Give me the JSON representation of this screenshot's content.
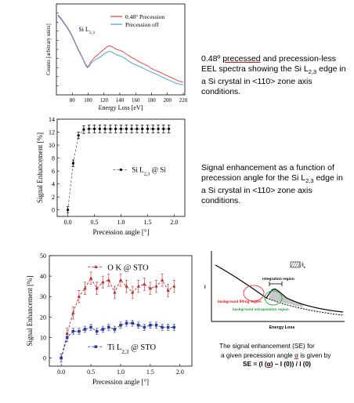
{
  "chart_data": [
    {
      "type": "line",
      "xlabel": "Energy Loss [eV]",
      "ylabel": "Counts [arbitrary units]",
      "xlim": [
        60,
        222
      ],
      "ylim": [
        0,
        1
      ],
      "xticks": [
        "80",
        "100",
        "120",
        "140",
        "160",
        "180",
        "200",
        "220"
      ],
      "annotation": "Si L",
      "annotation_sub": "2,3",
      "legend_position": "top-right",
      "series": [
        {
          "name": "0.48° Precession",
          "color": "#e8474a",
          "x": [
            62,
            66,
            70,
            74,
            78,
            82,
            86,
            90,
            94,
            97,
            99,
            101,
            104,
            108,
            112,
            116,
            120,
            124,
            128,
            132,
            136,
            140,
            145,
            150,
            155,
            160,
            165,
            170,
            175,
            180,
            185,
            190,
            195,
            200,
            205,
            210,
            215,
            220
          ],
          "y": [
            0.88,
            0.84,
            0.79,
            0.74,
            0.68,
            0.61,
            0.53,
            0.46,
            0.39,
            0.33,
            0.31,
            0.32,
            0.37,
            0.41,
            0.44,
            0.47,
            0.5,
            0.53,
            0.54,
            0.52,
            0.5,
            0.49,
            0.47,
            0.44,
            0.41,
            0.39,
            0.36,
            0.34,
            0.32,
            0.29,
            0.27,
            0.25,
            0.23,
            0.21,
            0.19,
            0.17,
            0.15,
            0.14
          ]
        },
        {
          "name": "Precession off",
          "color": "#4aa8d8",
          "x": [
            62,
            66,
            70,
            74,
            78,
            82,
            86,
            90,
            94,
            97,
            99,
            101,
            104,
            108,
            112,
            116,
            120,
            124,
            128,
            132,
            136,
            140,
            145,
            150,
            155,
            160,
            165,
            170,
            175,
            180,
            185,
            190,
            195,
            200,
            205,
            210,
            215,
            220
          ],
          "y": [
            0.87,
            0.83,
            0.78,
            0.73,
            0.67,
            0.6,
            0.52,
            0.45,
            0.38,
            0.32,
            0.3,
            0.31,
            0.35,
            0.38,
            0.4,
            0.42,
            0.45,
            0.47,
            0.48,
            0.46,
            0.44,
            0.43,
            0.41,
            0.38,
            0.35,
            0.33,
            0.31,
            0.29,
            0.27,
            0.25,
            0.23,
            0.21,
            0.19,
            0.17,
            0.15,
            0.13,
            0.12,
            0.11
          ]
        }
      ]
    },
    {
      "type": "line",
      "xlabel": "Precession angle [°]",
      "ylabel": "Signal Enhancement [%]",
      "xlim": [
        -0.2,
        2.2
      ],
      "ylim": [
        -1,
        14
      ],
      "xticks": [
        "0.0",
        "0.5",
        "1.0",
        "1.5",
        "2.0"
      ],
      "yticks": [
        "0",
        "2",
        "4",
        "6",
        "8",
        "10",
        "12",
        "14"
      ],
      "legend_position": "center-right",
      "series": [
        {
          "name": "Si L",
          "name_sub": "2,3",
          "name_suffix": " @ Si",
          "color": "#000000",
          "x": [
            0.0,
            0.1,
            0.2,
            0.3,
            0.4,
            0.5,
            0.6,
            0.7,
            0.8,
            0.9,
            1.0,
            1.1,
            1.2,
            1.3,
            1.4,
            1.5,
            1.6,
            1.7,
            1.8,
            1.9
          ],
          "y": [
            0.0,
            7.2,
            11.5,
            12.4,
            12.5,
            12.5,
            12.5,
            12.5,
            12.5,
            12.5,
            12.5,
            12.5,
            12.5,
            12.5,
            12.5,
            12.5,
            12.5,
            12.5,
            12.5,
            12.5
          ],
          "err": [
            0.5,
            0.5,
            0.5,
            0.6,
            0.6,
            0.6,
            0.6,
            0.6,
            0.6,
            0.6,
            0.6,
            0.6,
            0.6,
            0.6,
            0.6,
            0.6,
            0.6,
            0.6,
            0.6,
            0.6
          ]
        }
      ]
    },
    {
      "type": "line",
      "xlabel": "Precession angle [°]",
      "ylabel": "Signal Enhancement [%]",
      "xlim": [
        -0.2,
        2.2
      ],
      "ylim": [
        -4,
        50
      ],
      "xticks": [
        "0.0",
        "0.5",
        "1.0",
        "1.5",
        "2.0"
      ],
      "yticks": [
        "0",
        "10",
        "20",
        "30",
        "40",
        "50"
      ],
      "series": [
        {
          "name": "O K @ STO",
          "color": "#c0282c",
          "marker": "triangle",
          "x": [
            0.0,
            0.1,
            0.2,
            0.3,
            0.4,
            0.5,
            0.6,
            0.7,
            0.8,
            0.9,
            1.0,
            1.1,
            1.2,
            1.3,
            1.4,
            1.5,
            1.6,
            1.7,
            1.8,
            1.9
          ],
          "y": [
            0,
            12,
            22,
            30,
            34,
            39,
            34,
            37,
            38,
            32,
            38,
            35,
            32,
            35,
            36,
            34,
            35,
            38,
            33,
            35
          ],
          "err": [
            2,
            2.5,
            3,
            3,
            3,
            3,
            3,
            3,
            3,
            3,
            3,
            3,
            3,
            3,
            3,
            3,
            3,
            3,
            3,
            3
          ]
        },
        {
          "name": "Ti L",
          "name_sub": "2,3",
          "name_suffix": " @ STO",
          "color": "#2a3b9c",
          "marker": "square",
          "x": [
            0.0,
            0.1,
            0.2,
            0.3,
            0.4,
            0.5,
            0.6,
            0.7,
            0.8,
            0.9,
            1.0,
            1.1,
            1.2,
            1.3,
            1.4,
            1.5,
            1.6,
            1.7,
            1.8,
            1.9
          ],
          "y": [
            0,
            10,
            13,
            13,
            14,
            15,
            13,
            14,
            15,
            14,
            16,
            17,
            17,
            16,
            15,
            16,
            16,
            15,
            15,
            15
          ],
          "err": [
            2,
            2,
            1.5,
            1.5,
            1.5,
            1.5,
            1.5,
            1.5,
            1.5,
            1.5,
            1.5,
            1.5,
            1.5,
            1.5,
            1.5,
            1.5,
            1.5,
            1.5,
            1.5,
            1.5
          ]
        }
      ]
    }
  ],
  "schematic": {
    "ylabel": "I",
    "xlabel": "Energy Loss",
    "integration_label": "integration region",
    "fitting_label": "background fitting region",
    "extrapolation_label": "background extrapolation region",
    "legend_label": "I",
    "legend_sub": "s"
  },
  "captions": {
    "c1_pre": "0.48º ",
    "c1_underlined": "precessed",
    "c1_post": " and precession-less EEL spectra showing the Si L",
    "c1_sub": "2,3",
    "c1_end": " edge in a Si crystal in <110> zone axis conditions.",
    "c2_pre": "Signal enhancement as a function of precession angle for the Si L",
    "c2_sub": "2,3",
    "c2_end": " edge in a Si crystal in <110> zone axis conditions.",
    "se_line1": "The signal enhancement (SE) for",
    "se_line2_pre": "a given precession angle ",
    "se_alpha": "α",
    "se_line2_post": " is given by",
    "se_formula_pre": "SE = (I (",
    "se_formula_alpha": "α",
    "se_formula_post": ") – I (0)) / I (0)"
  }
}
